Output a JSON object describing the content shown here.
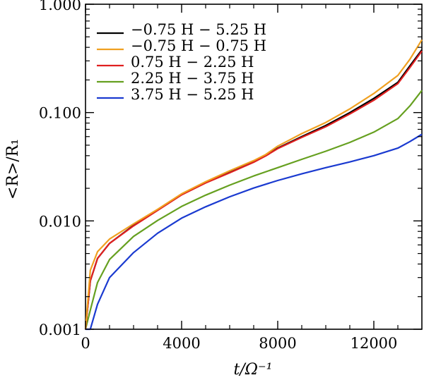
{
  "chart_data": {
    "type": "line",
    "title": "",
    "xlabel": "t/Ω⁻¹",
    "ylabel": "<R>/R₁",
    "xlim": [
      0,
      14000
    ],
    "ylim": [
      0.001,
      1.0
    ],
    "yscale": "log",
    "grid": false,
    "legend_position": "top-left",
    "x_ticks": [
      0,
      4000,
      8000,
      12000
    ],
    "x_tick_labels": [
      "0",
      "4000",
      "8000",
      "12000"
    ],
    "y_ticks": [
      0.001,
      0.01,
      0.1,
      1.0
    ],
    "y_tick_labels": [
      "0.001",
      "0.010",
      "0.100",
      "1.000"
    ],
    "series": [
      {
        "name": "−0.75 H − 5.25 H",
        "color": "#000000",
        "x": [
          0,
          200,
          500,
          1000,
          2000,
          3000,
          4000,
          5000,
          6000,
          7000,
          7500,
          8000,
          9000,
          10000,
          11000,
          12000,
          13000,
          13500,
          14000
        ],
        "y": [
          0.001,
          0.0028,
          0.0045,
          0.0062,
          0.0091,
          0.0126,
          0.0175,
          0.0225,
          0.028,
          0.035,
          0.04,
          0.047,
          0.06,
          0.076,
          0.1,
          0.135,
          0.19,
          0.27,
          0.38
        ]
      },
      {
        "name": "−0.75 H − 0.75 H",
        "color": "#f0a020",
        "x": [
          0,
          200,
          500,
          1000,
          2000,
          3000,
          4000,
          5000,
          6000,
          7000,
          7500,
          8000,
          9000,
          10000,
          11000,
          12000,
          13000,
          13500,
          14000
        ],
        "y": [
          0.001,
          0.0035,
          0.0052,
          0.0068,
          0.0094,
          0.0128,
          0.0178,
          0.023,
          0.029,
          0.036,
          0.041,
          0.049,
          0.064,
          0.081,
          0.108,
          0.15,
          0.22,
          0.31,
          0.47
        ]
      },
      {
        "name": "0.75 H − 2.25 H",
        "color": "#e02020",
        "x": [
          0,
          200,
          500,
          1000,
          2000,
          3000,
          4000,
          5000,
          6000,
          7000,
          7500,
          8000,
          9000,
          10000,
          11000,
          12000,
          13000,
          13500,
          14000
        ],
        "y": [
          0.001,
          0.0028,
          0.0045,
          0.0062,
          0.009,
          0.0125,
          0.0174,
          0.0224,
          0.0278,
          0.0348,
          0.0398,
          0.0465,
          0.059,
          0.074,
          0.097,
          0.13,
          0.185,
          0.26,
          0.37
        ]
      },
      {
        "name": "2.25 H − 3.75 H",
        "color": "#66a020",
        "x": [
          0,
          200,
          500,
          1000,
          2000,
          3000,
          4000,
          5000,
          6000,
          7000,
          8000,
          9000,
          10000,
          11000,
          12000,
          13000,
          13500,
          14000
        ],
        "y": [
          0.001,
          0.0015,
          0.0027,
          0.0044,
          0.0072,
          0.0101,
          0.0136,
          0.0173,
          0.0214,
          0.026,
          0.031,
          0.037,
          0.044,
          0.053,
          0.066,
          0.088,
          0.115,
          0.16
        ]
      },
      {
        "name": "3.75 H − 5.25 H",
        "color": "#1a3ad0",
        "x": [
          0,
          200,
          500,
          1000,
          2000,
          3000,
          4000,
          5000,
          6000,
          7000,
          8000,
          9000,
          10000,
          11000,
          12000,
          13000,
          13500,
          14000
        ],
        "y": [
          0.001,
          0.001,
          0.0017,
          0.003,
          0.0051,
          0.0077,
          0.0106,
          0.0135,
          0.0167,
          0.0201,
          0.0236,
          0.0272,
          0.031,
          0.035,
          0.04,
          0.047,
          0.054,
          0.063
        ]
      }
    ]
  }
}
